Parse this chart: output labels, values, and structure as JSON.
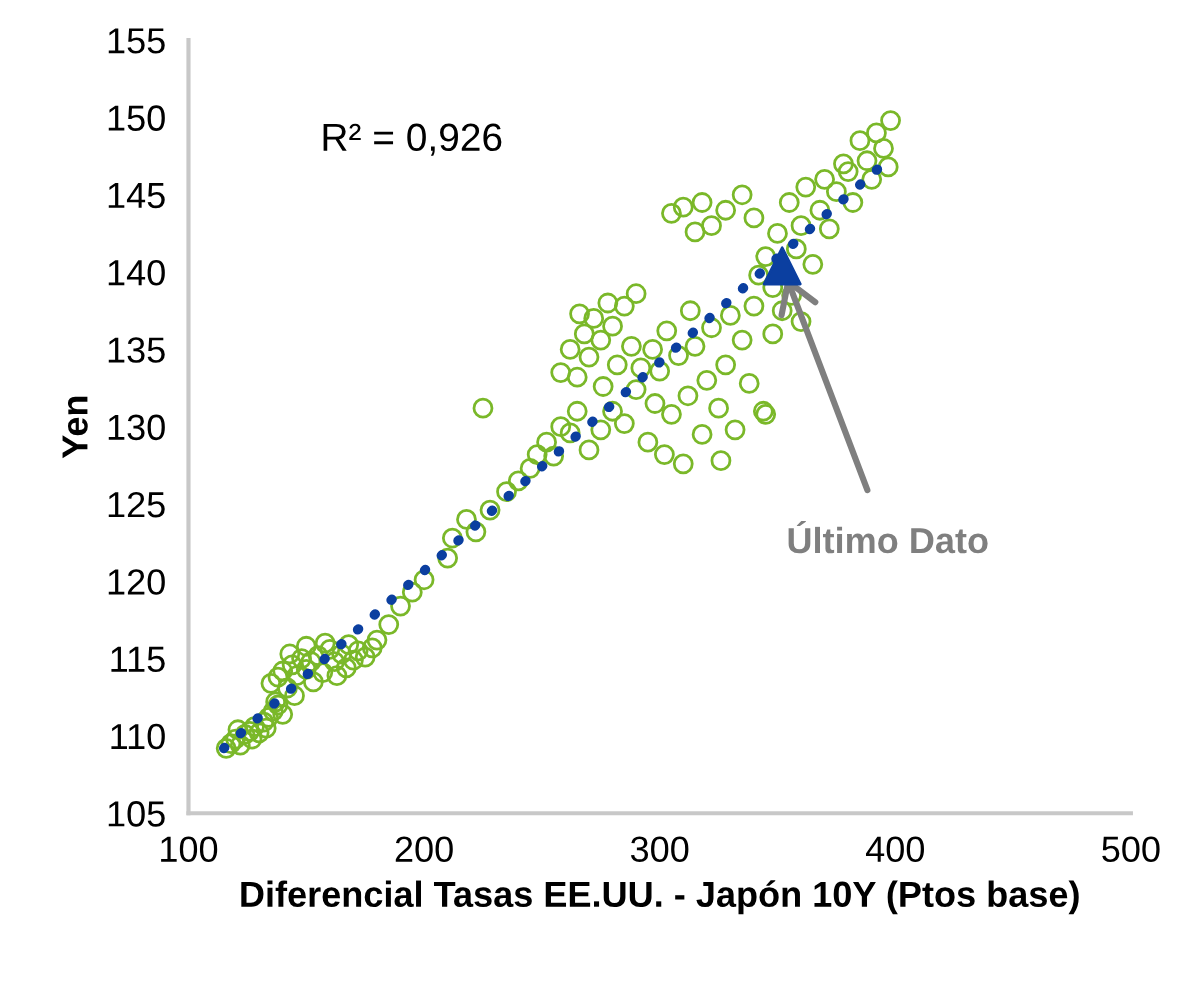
{
  "chart_data": {
    "type": "scatter",
    "xlabel": "Diferencial Tasas EE.UU. - Japón 10Y (Ptos base)",
    "ylabel": "Yen",
    "xlim": [
      100,
      500
    ],
    "xticks": [
      100,
      200,
      300,
      400,
      500
    ],
    "ylim": [
      105,
      155
    ],
    "yticks": [
      105,
      110,
      115,
      120,
      125,
      130,
      135,
      140,
      145,
      150,
      155
    ],
    "grid": false,
    "legend": false,
    "annotations": [
      "R² = 0,926",
      {
        "text": "Último Dato",
        "x": 352,
        "y": 140.4
      }
    ],
    "series": [
      {
        "marker": "circle",
        "color": "#7ab829",
        "x": [
          116,
          118,
          120,
          122,
          124,
          126,
          128,
          130,
          132,
          134,
          121,
          127,
          133,
          136,
          138,
          140,
          135,
          138,
          140,
          142,
          144,
          146,
          148,
          150,
          152,
          155,
          157,
          160,
          162,
          165,
          168,
          170,
          172,
          175,
          178,
          180,
          145,
          153,
          163,
          137,
          150,
          158,
          167,
          143,
          185,
          190,
          195,
          200,
          210,
          212,
          218,
          222,
          228,
          235,
          240,
          245,
          248,
          252,
          255,
          258,
          262,
          265,
          225,
          258,
          262,
          265,
          268,
          270,
          272,
          275,
          278,
          280,
          282,
          285,
          288,
          290,
          292,
          276,
          266,
          270,
          275,
          280,
          285,
          290,
          295,
          298,
          300,
          302,
          305,
          308,
          310,
          312,
          315,
          318,
          320,
          322,
          325,
          328,
          330,
          332,
          335,
          338,
          340,
          303,
          313,
          297,
          326,
          345,
          344,
          305,
          310,
          315,
          318,
          322,
          328,
          335,
          340,
          345,
          348,
          350,
          355,
          358,
          360,
          362,
          365,
          368,
          370,
          372,
          375,
          378,
          380,
          382,
          385,
          388,
          390,
          392,
          395,
          398,
          397,
          352,
          356,
          360,
          342,
          348
        ],
        "values": [
          109.2,
          109.5,
          109.8,
          109.4,
          110.1,
          110.3,
          110.6,
          110.2,
          110.9,
          111.2,
          110.4,
          109.8,
          110.5,
          111.6,
          112.0,
          111.4,
          113.4,
          113.8,
          114.2,
          113.1,
          114.6,
          113.9,
          115.0,
          114.3,
          114.8,
          115.2,
          114.1,
          115.6,
          114.8,
          115.3,
          115.9,
          114.9,
          115.5,
          115.1,
          115.7,
          116.2,
          112.6,
          113.5,
          113.9,
          112.2,
          115.8,
          116.0,
          114.4,
          115.3,
          117.2,
          118.4,
          119.3,
          120.1,
          121.5,
          122.8,
          124.0,
          123.2,
          124.6,
          125.8,
          126.5,
          127.3,
          128.2,
          129.0,
          128.1,
          130.0,
          129.6,
          131.0,
          131.2,
          133.5,
          135.0,
          133.2,
          136.0,
          134.5,
          137.0,
          135.6,
          138.0,
          136.5,
          134.0,
          137.8,
          135.2,
          138.6,
          133.8,
          132.6,
          137.3,
          128.5,
          129.8,
          131.0,
          130.2,
          132.4,
          129.0,
          131.5,
          133.6,
          128.2,
          130.8,
          134.6,
          127.6,
          132.0,
          135.2,
          129.5,
          133.0,
          136.4,
          131.2,
          134.0,
          137.2,
          129.8,
          135.6,
          132.8,
          137.8,
          136.2,
          137.5,
          135.0,
          127.8,
          130.8,
          131.0,
          143.8,
          144.2,
          142.6,
          144.5,
          143.0,
          144.0,
          145.0,
          143.5,
          141.0,
          139.0,
          142.5,
          144.5,
          141.5,
          143.0,
          145.5,
          140.5,
          144.0,
          146.0,
          142.8,
          145.2,
          147.0,
          146.5,
          144.5,
          148.5,
          147.2,
          146.0,
          149.0,
          148.0,
          149.8,
          146.8,
          137.5,
          138.5,
          136.8,
          139.8,
          136.0
        ]
      },
      {
        "type": "line",
        "marker": "none",
        "line_style": "dotted",
        "color": "#0b3fa0",
        "x": [
          115,
          395
        ],
        "values": [
          109.2,
          147.0
        ]
      },
      {
        "marker": "triangle",
        "color": "#0b3fa0",
        "x": [
          352
        ],
        "values": [
          140.4
        ]
      }
    ]
  }
}
